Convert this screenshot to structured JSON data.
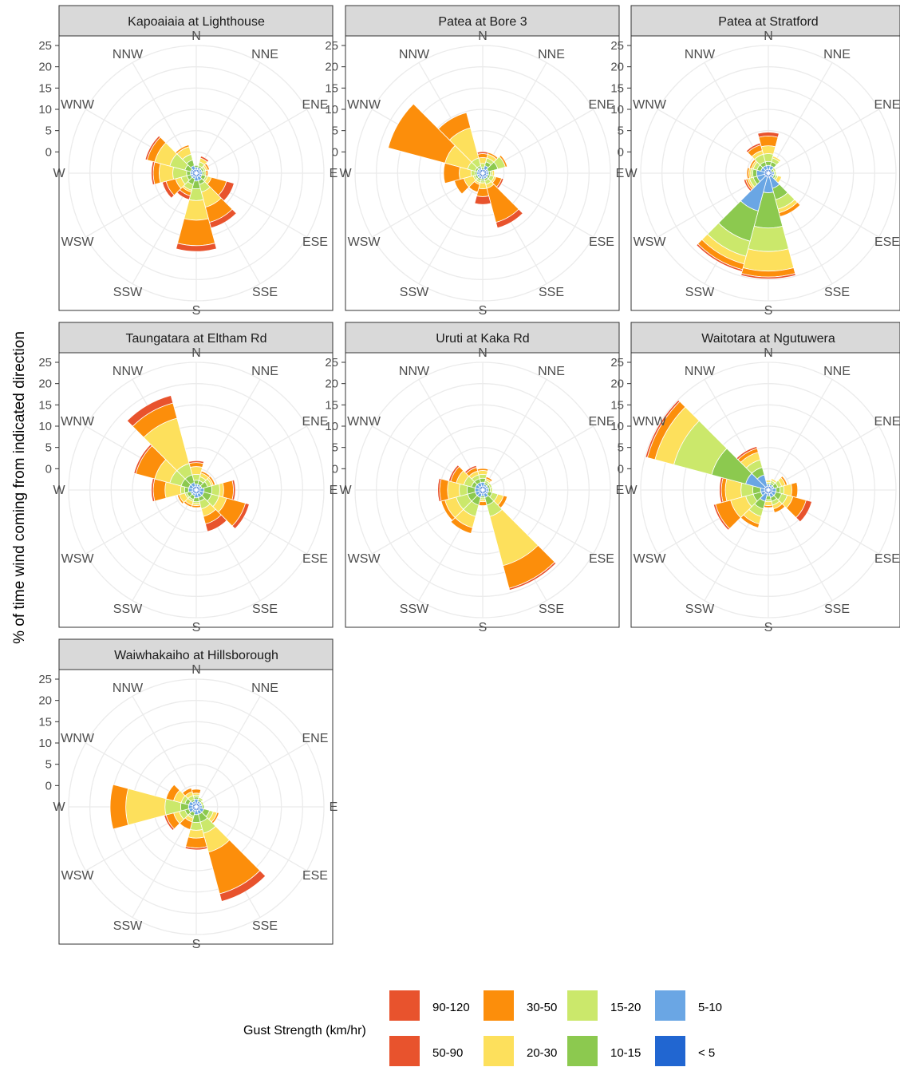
{
  "chart_data": {
    "type": "polar-stacked-bar",
    "ylabel": "% of time wind coming from indicated direction",
    "r_ticks": [
      0,
      5,
      10,
      15,
      20,
      25
    ],
    "r_max": 30,
    "directions": [
      "N",
      "NNE",
      "ENE",
      "E",
      "ESE",
      "SSE",
      "S",
      "SSW",
      "WSW",
      "W",
      "WNW",
      "NNW"
    ],
    "legend": {
      "title": "Gust Strength (km/hr)",
      "position": "bottom",
      "entries": [
        {
          "key": "gt5",
          "label": "< 5",
          "color": "#2166d1"
        },
        {
          "key": "g5",
          "label": "5-10",
          "color": "#6aa6e4"
        },
        {
          "key": "g10",
          "label": "10-15",
          "color": "#8cc94f"
        },
        {
          "key": "g15",
          "label": "15-20",
          "color": "#cbe86b"
        },
        {
          "key": "g20",
          "label": "20-30",
          "color": "#fde05c"
        },
        {
          "key": "g30",
          "label": "30-50",
          "color": "#fc8e0b"
        },
        {
          "key": "g50",
          "label": "50-90",
          "color": "#e8532d"
        },
        {
          "key": "g90",
          "label": "90-120",
          "color": "#e8532d"
        }
      ]
    },
    "panels": [
      {
        "title": "Kapoaiaia at Lighthouse",
        "cumulative": [
          [
            1,
            1.5,
            2,
            2,
            2,
            2,
            2,
            2
          ],
          [
            1,
            1.5,
            2,
            3,
            4,
            4,
            4.5,
            4.5
          ],
          [
            1,
            1.5,
            2,
            2.5,
            3,
            3.5,
            3.5,
            3.5
          ],
          [
            1,
            1.5,
            2,
            2.5,
            2,
            3,
            3,
            3
          ],
          [
            1,
            1.5,
            2.5,
            3,
            4,
            8,
            10,
            10
          ],
          [
            1,
            2,
            3,
            5,
            9,
            13,
            14.5,
            14.5
          ],
          [
            1,
            2,
            4,
            7,
            12,
            18.5,
            20,
            20
          ],
          [
            1,
            1.5,
            3,
            4.5,
            5,
            6,
            7,
            7
          ],
          [
            1,
            1.5,
            2.5,
            4,
            5.5,
            8,
            9,
            9
          ],
          [
            1,
            1.5,
            2.5,
            6,
            9.5,
            11,
            11.5,
            11.5
          ],
          [
            1,
            1.5,
            3,
            7,
            11,
            13,
            13.5,
            13.5
          ],
          [
            1,
            2,
            3.5,
            5,
            7,
            7.5,
            7.5,
            7.5
          ]
        ]
      },
      {
        "title": "Patea at Bore 3",
        "cumulative": [
          [
            1,
            1,
            1.5,
            2.5,
            4,
            5,
            5.5,
            5.5
          ],
          [
            1,
            2,
            3,
            4,
            5,
            5.5,
            5.5,
            5.5
          ],
          [
            1,
            1.5,
            4,
            6,
            6,
            6.5,
            6.5,
            6.5
          ],
          [
            1,
            1.5,
            2,
            2.5,
            3,
            3,
            3,
            3
          ],
          [
            1,
            1.5,
            2,
            3,
            3.5,
            5,
            5.5,
            5.5
          ],
          [
            1,
            1.5,
            2,
            3,
            4,
            13,
            14.5,
            14.5
          ],
          [
            1,
            1.5,
            2,
            2.5,
            4,
            6,
            8,
            8
          ],
          [
            1,
            1.5,
            2,
            2.5,
            3,
            5,
            5,
            5
          ],
          [
            1,
            1.5,
            2,
            2.5,
            5,
            7.5,
            7.5,
            7.5
          ],
          [
            1,
            1.5,
            2,
            3,
            6,
            10,
            10,
            10
          ],
          [
            1,
            1.5,
            2,
            4,
            10,
            25,
            25,
            25
          ],
          [
            1,
            1.5,
            2,
            4,
            12,
            16,
            16,
            16
          ]
        ]
      },
      {
        "title": "Patea at Stratford",
        "cumulative": [
          [
            1,
            2,
            3,
            5,
            7,
            9.5,
            10.5,
            10.5
          ],
          [
            1,
            2,
            3,
            4,
            4.5,
            4.5,
            4.5,
            4.5
          ],
          [
            1,
            1,
            1.5,
            2,
            2,
            2,
            2,
            2
          ],
          [
            1,
            1.5,
            1.5,
            2,
            2,
            2,
            2,
            2
          ],
          [
            1,
            1.5,
            2,
            2.5,
            3.5,
            3.5,
            3.5,
            3.5
          ],
          [
            1,
            4,
            7,
            9.5,
            10.5,
            11.5,
            11.5,
            11.5
          ],
          [
            1,
            5,
            14,
            20,
            25,
            26.5,
            27,
            27
          ],
          [
            1,
            10,
            18,
            22,
            24,
            25.5,
            26,
            26
          ],
          [
            1,
            3,
            4,
            5,
            5.5,
            6,
            6.5,
            6.5
          ],
          [
            1,
            3,
            4,
            4.5,
            5,
            5.5,
            5.5,
            5.5
          ],
          [
            1,
            2,
            3,
            4,
            4.5,
            5,
            5,
            5
          ],
          [
            1,
            2,
            3,
            5,
            6,
            7.5,
            8,
            8
          ]
        ]
      },
      {
        "title": "Taungatara at Eltham Rd",
        "cumulative": [
          [
            1,
            1.5,
            2.5,
            4,
            6,
            7,
            7.5,
            7.5
          ],
          [
            1,
            1.5,
            2.5,
            3.5,
            4.5,
            5,
            5,
            5
          ],
          [
            1,
            1.5,
            3,
            4,
            4.5,
            5,
            5,
            5
          ],
          [
            1,
            2,
            4,
            6,
            7,
            9.5,
            10,
            10
          ],
          [
            1,
            2,
            4,
            6,
            8,
            13,
            14,
            14
          ],
          [
            1,
            2,
            3,
            5,
            7,
            9,
            11,
            11
          ],
          [
            1,
            2,
            3,
            3.5,
            4,
            4.5,
            4.5,
            4.5
          ],
          [
            1,
            1.5,
            2.5,
            3,
            4,
            4.5,
            4.5,
            4.5
          ],
          [
            1,
            1.5,
            2.5,
            3,
            4.5,
            5,
            5,
            5
          ],
          [
            1,
            2,
            3,
            4,
            8,
            11,
            11.5,
            11.5
          ],
          [
            1,
            2,
            4,
            7,
            11,
            16,
            16.5,
            16.5
          ],
          [
            1,
            2,
            4,
            7,
            19,
            23,
            25,
            25
          ]
        ]
      },
      {
        "title": "Uruti at Kaka Rd",
        "cumulative": [
          [
            1,
            2,
            3,
            4,
            5,
            5.5,
            5.5,
            5.5
          ],
          [
            1,
            1.5,
            2,
            2.5,
            3,
            3.5,
            3.5,
            3.5
          ],
          [
            1,
            1.5,
            2,
            2.5,
            2.5,
            2.5,
            2.5,
            2.5
          ],
          [
            1,
            1.5,
            2,
            2.5,
            2.5,
            2.5,
            2.5,
            2.5
          ],
          [
            1,
            1.5,
            2.5,
            4,
            5.5,
            6.5,
            6.5,
            6.5
          ],
          [
            1,
            2,
            4,
            7,
            20,
            26,
            26.5,
            26.5
          ],
          [
            1,
            1.5,
            2,
            2.5,
            3,
            4,
            4,
            4
          ],
          [
            1,
            2,
            4,
            7,
            10,
            11.5,
            11.5,
            11.5
          ],
          [
            1,
            2,
            4,
            7,
            10,
            11,
            11,
            11
          ],
          [
            1,
            2,
            4,
            6,
            9,
            11,
            11.5,
            11.5
          ],
          [
            1,
            2,
            3,
            5,
            7,
            8.5,
            9,
            9
          ],
          [
            1,
            2,
            3,
            4,
            5,
            6,
            6.5,
            6.5
          ]
        ]
      },
      {
        "title": "Waitotara at Ngutuwera",
        "cumulative": [
          [
            1,
            1.5,
            1.5,
            2,
            2.5,
            2.5,
            2.5,
            2.5
          ],
          [
            1,
            1.5,
            2,
            2.5,
            3,
            3,
            3,
            3
          ],
          [
            1,
            1.5,
            2.5,
            3.5,
            4.5,
            5,
            5,
            5
          ],
          [
            1,
            2,
            3,
            4,
            6,
            7.5,
            7.5,
            7.5
          ],
          [
            1,
            2,
            3.5,
            5,
            6.5,
            10,
            11.5,
            11.5
          ],
          [
            1,
            2,
            3,
            4,
            5,
            6,
            6,
            6
          ],
          [
            1,
            1.5,
            2.5,
            3,
            4,
            4.5,
            4.5,
            4.5
          ],
          [
            1,
            3,
            5,
            7,
            9,
            10,
            10,
            10
          ],
          [
            1,
            2,
            4,
            6,
            10,
            14,
            14.5,
            14.5
          ],
          [
            1,
            2,
            4,
            7,
            11,
            12,
            12.5,
            12.5
          ],
          [
            1,
            6,
            15,
            25,
            30,
            32,
            32.5,
            32.5
          ],
          [
            1,
            4,
            6,
            8,
            10,
            11,
            11.5,
            11.5
          ]
        ]
      },
      {
        "title": "Waiwhakaiho at Hillsborough",
        "cumulative": [
          [
            1,
            2,
            2.5,
            3,
            3.5,
            4.5,
            4.5,
            4.5
          ],
          [
            1,
            1.5,
            2,
            2.5,
            2.5,
            2.5,
            2.5,
            2.5
          ],
          [
            1,
            1.5,
            1.5,
            2,
            2,
            2,
            2,
            2
          ],
          [
            1,
            1.5,
            2,
            2,
            2,
            2,
            2,
            2
          ],
          [
            1,
            2,
            3.5,
            4.5,
            5.5,
            6,
            6,
            6
          ],
          [
            1,
            2,
            4,
            7,
            12,
            23,
            25,
            25
          ],
          [
            1,
            2,
            4,
            6,
            8,
            10.5,
            11,
            11
          ],
          [
            1,
            1.5,
            2.5,
            3,
            4,
            6,
            6,
            6
          ],
          [
            1,
            2,
            3,
            4.5,
            6,
            8,
            8.5,
            8.5
          ],
          [
            1,
            2,
            4,
            8,
            18,
            22,
            22,
            22
          ],
          [
            1,
            2,
            3,
            4,
            6,
            8,
            8,
            8
          ],
          [
            1,
            1.5,
            2,
            3,
            4,
            5,
            5,
            5
          ]
        ]
      }
    ]
  }
}
